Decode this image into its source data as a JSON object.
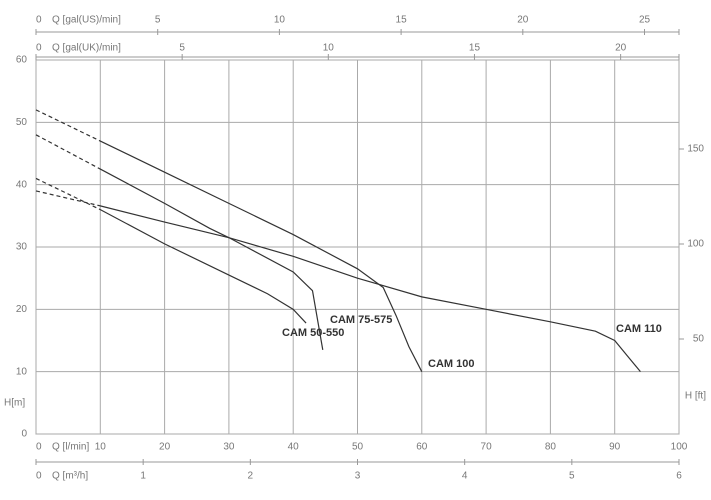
{
  "chart_data": {
    "type": "line",
    "x_label": "Q [l/min]",
    "y_label": "H[m]",
    "y2_label": "H [ft]",
    "xlim": [
      0,
      100
    ],
    "xticks": [
      0,
      10,
      20,
      30,
      40,
      50,
      60,
      70,
      80,
      90,
      100
    ],
    "ylim": [
      0,
      60
    ],
    "yticks": [
      0,
      10,
      20,
      30,
      40,
      50,
      60
    ],
    "y2lim": [
      0,
      196.85
    ],
    "y2ticks": [
      50,
      100,
      150
    ],
    "grid": true,
    "color": "#333333",
    "dashed_until": 10,
    "secondary_x_axes": [
      {
        "label": "Q [gal(US)/min]",
        "position": "top",
        "lim": [
          0,
          26.417
        ],
        "ticks": [
          0,
          5,
          10,
          15,
          20,
          25
        ]
      },
      {
        "label": "Q [gal(UK)/min]",
        "position": "top",
        "lim": [
          0,
          21.997
        ],
        "ticks": [
          0,
          5,
          10,
          15,
          20
        ]
      },
      {
        "label": "Q [m³/h]",
        "position": "bottom",
        "lim": [
          0,
          6
        ],
        "ticks": [
          0,
          1,
          2,
          3,
          4,
          5,
          6
        ]
      }
    ],
    "series": [
      {
        "name": "CAM 50-550",
        "x": [
          0,
          10,
          20,
          30,
          36,
          40,
          42
        ],
        "values": [
          41,
          36,
          30.5,
          25.5,
          22.5,
          20,
          17.8
        ]
      },
      {
        "name": "CAM 75-575",
        "x": [
          0,
          10,
          20,
          27,
          30,
          40,
          43,
          44.6
        ],
        "values": [
          48,
          42.5,
          37,
          33,
          31.5,
          26,
          23,
          13.5
        ]
      },
      {
        "name": "CAM 100",
        "x": [
          0,
          10,
          20,
          30,
          40,
          50,
          54,
          56,
          58,
          60
        ],
        "values": [
          52,
          47,
          42,
          37,
          32,
          26.5,
          23.5,
          19,
          14,
          10
        ]
      },
      {
        "name": "CAM 110",
        "x": [
          0,
          10,
          20,
          30,
          40,
          50,
          60,
          70,
          80,
          87,
          90,
          92,
          94
        ],
        "values": [
          39,
          36.6,
          34,
          31.5,
          28.5,
          25,
          22,
          20,
          18,
          16.5,
          15,
          12.5,
          10
        ]
      }
    ]
  }
}
